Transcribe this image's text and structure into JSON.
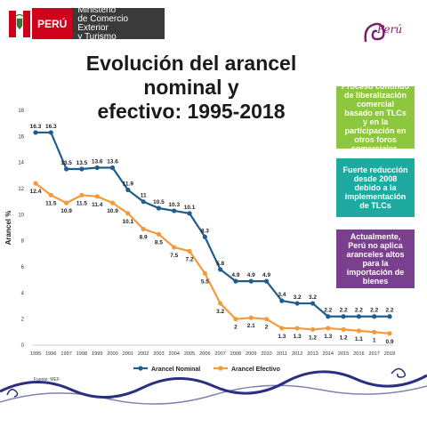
{
  "header": {
    "peru_label": "PERÚ",
    "ministry_lines": [
      "Ministerio",
      "de Comercio Exterior",
      "y Turismo"
    ],
    "brand_text": "Perú"
  },
  "title_lines": [
    "Evolución del arancel nominal y",
    "efectivo: 1995-2018"
  ],
  "callouts": [
    "Proceso continuo de liberalización comercial basado en TLCs y en la participación en otros foros comerciales.",
    "Fuerte reducción desde 2008 debido a la implementación de TLCs",
    "Actualmente, Perú no aplica aranceles altos para la importación de bienes"
  ],
  "source": "Fuente: MEF",
  "colors": {
    "nominal": "#1f5e8c",
    "efectivo": "#f39b3c",
    "callout_green": "#8dc63f",
    "callout_teal": "#1eaaa0",
    "callout_purple": "#7b3f8f",
    "peru_red": "#d0021b"
  },
  "chart_data": {
    "type": "line",
    "ylabel": "Arancel %",
    "ylim": [
      0,
      18
    ],
    "yticks": [
      0,
      2,
      4,
      6,
      8,
      10,
      12,
      14,
      16,
      18
    ],
    "grid": false,
    "legend_placement": "bottom",
    "categories": [
      "1995",
      "1996",
      "1997",
      "1998",
      "1999",
      "2000",
      "2001",
      "2002",
      "2003",
      "2004",
      "2005",
      "2006",
      "2007",
      "2008",
      "2009",
      "2010",
      "2011",
      "2012",
      "2013",
      "2014",
      "2015",
      "2016",
      "2017",
      "2018"
    ],
    "series": [
      {
        "name": "Arancel Nominal",
        "values": [
          16.3,
          16.3,
          13.5,
          13.5,
          13.6,
          13.6,
          11.9,
          11,
          10.5,
          10.3,
          10.1,
          8.3,
          5.8,
          4.9,
          4.9,
          4.9,
          3.4,
          3.2,
          3.2,
          2.2,
          2.2,
          2.2,
          2.2,
          2.2
        ],
        "labels": [
          "16.3",
          "16.3",
          "13.5",
          "13.5",
          "13.6",
          "13.6",
          "11.9",
          "11",
          "10.5",
          "10.3",
          "10.1",
          "8.3",
          "5.8",
          "4.9",
          "4.9",
          "4.9",
          "3.4",
          "3.2",
          "3.2",
          "2.2",
          "2.2",
          "2.2",
          "2.2",
          "2.2"
        ]
      },
      {
        "name": "Arancel Efectivo",
        "values": [
          12.4,
          11.5,
          10.9,
          11.5,
          11.4,
          10.9,
          10.1,
          8.9,
          8.5,
          7.5,
          7.2,
          5.5,
          3.2,
          2,
          2.1,
          2,
          1.3,
          1.3,
          1.2,
          1.3,
          1.2,
          1.1,
          1,
          0.9
        ],
        "labels": [
          "12.4",
          "11.5",
          "10.9",
          "11.5",
          "11.4",
          "10.9",
          "10.1",
          "8.9",
          "8.5",
          "7.5",
          "7.2",
          "5.5",
          "3.2",
          "2",
          "2.1",
          "2",
          "1.3",
          "1.3",
          "1.2",
          "1.3",
          "1.2",
          "1.1",
          "1",
          "0.9"
        ]
      }
    ]
  }
}
